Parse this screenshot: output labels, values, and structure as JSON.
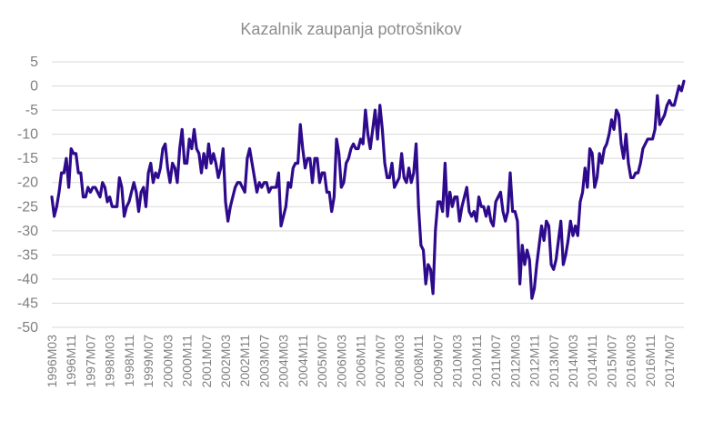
{
  "chart_data": {
    "type": "line",
    "title": "Kazalnik zaupanja potrošnikov",
    "xlabel": "",
    "ylabel": "",
    "ylim": [
      -50,
      5
    ],
    "yticks": [
      5,
      0,
      -5,
      -10,
      -15,
      -20,
      -25,
      -30,
      -35,
      -40,
      -45,
      -50
    ],
    "grid": true,
    "color": "#2e0a8c",
    "x_tick_labels": [
      "1996M03",
      "1996M11",
      "1997M07",
      "1998M03",
      "1998M11",
      "1999M07",
      "2000M03",
      "2000M11",
      "2001M07",
      "2002M03",
      "2002M11",
      "2003M07",
      "2004M03",
      "2004M11",
      "2005M07",
      "2006M03",
      "2006M11",
      "2007M07",
      "2008M03",
      "2008M11",
      "2009M07",
      "2010M03",
      "2010M11",
      "2011M07",
      "2012M03",
      "2012M11",
      "2013M07",
      "2014M03",
      "2014M11",
      "2015M07",
      "2016M03",
      "2016M11",
      "2017M07"
    ],
    "x_start": "1996M03",
    "series": [
      {
        "values": [
          -23,
          -27,
          -25,
          -22,
          -18,
          -18,
          -15,
          -21,
          -13,
          -14,
          -14,
          -18,
          -18,
          -23,
          -23,
          -21,
          -22,
          -21,
          -21,
          -22,
          -23,
          -20,
          -21,
          -24,
          -23,
          -25,
          -25,
          -25,
          -19,
          -21,
          -27,
          -25,
          -24,
          -22,
          -20,
          -22,
          -26,
          -22,
          -21,
          -25,
          -18,
          -16,
          -20,
          -18,
          -19,
          -17,
          -13,
          -12,
          -17,
          -20,
          -16,
          -17,
          -20,
          -13,
          -9,
          -16,
          -16,
          -11,
          -13,
          -9,
          -13,
          -14,
          -18,
          -14,
          -17,
          -12,
          -16,
          -14,
          -16,
          -19,
          -17,
          -13,
          -24,
          -28,
          -25,
          -23,
          -21,
          -20,
          -20,
          -21,
          -22,
          -15,
          -13,
          -16,
          -19,
          -22,
          -20,
          -21,
          -20,
          -20,
          -22,
          -21,
          -21,
          -21,
          -18,
          -29,
          -27,
          -25,
          -20,
          -21,
          -17,
          -16,
          -16,
          -8,
          -13,
          -17,
          -15,
          -15,
          -20,
          -15,
          -15,
          -20,
          -18,
          -18,
          -22,
          -22,
          -26,
          -23,
          -11,
          -14,
          -21,
          -20,
          -16,
          -15,
          -13,
          -12,
          -13,
          -13,
          -11,
          -12,
          -5,
          -10,
          -13,
          -9,
          -5,
          -11,
          -4,
          -9,
          -16,
          -19,
          -19,
          -16,
          -21,
          -20,
          -19,
          -14,
          -19,
          -20,
          -17,
          -20,
          -18,
          -12,
          -25,
          -33,
          -34,
          -41,
          -37,
          -38,
          -43,
          -30,
          -24,
          -24,
          -26,
          -16,
          -27,
          -22,
          -25,
          -23,
          -23,
          -28,
          -25,
          -23,
          -21,
          -26,
          -27,
          -26,
          -28,
          -23,
          -25,
          -25,
          -27,
          -25,
          -28,
          -29,
          -24,
          -23,
          -22,
          -26,
          -28,
          -26,
          -18,
          -26,
          -26,
          -28,
          -41,
          -33,
          -37,
          -34,
          -36,
          -44,
          -42,
          -37,
          -33,
          -29,
          -32,
          -28,
          -29,
          -37,
          -38,
          -36,
          -32,
          -28,
          -37,
          -35,
          -32,
          -28,
          -31,
          -29,
          -31,
          -24,
          -22,
          -17,
          -21,
          -13,
          -14,
          -21,
          -19,
          -14,
          -16,
          -13,
          -12,
          -10,
          -7,
          -9,
          -5,
          -6,
          -12,
          -15,
          -10,
          -16,
          -19,
          -19,
          -18,
          -18,
          -16,
          -13,
          -12,
          -11,
          -11,
          -11,
          -9,
          -2,
          -8,
          -7,
          -6,
          -4,
          -3,
          -4,
          -4,
          -2,
          0,
          -1,
          1
        ]
      }
    ]
  }
}
